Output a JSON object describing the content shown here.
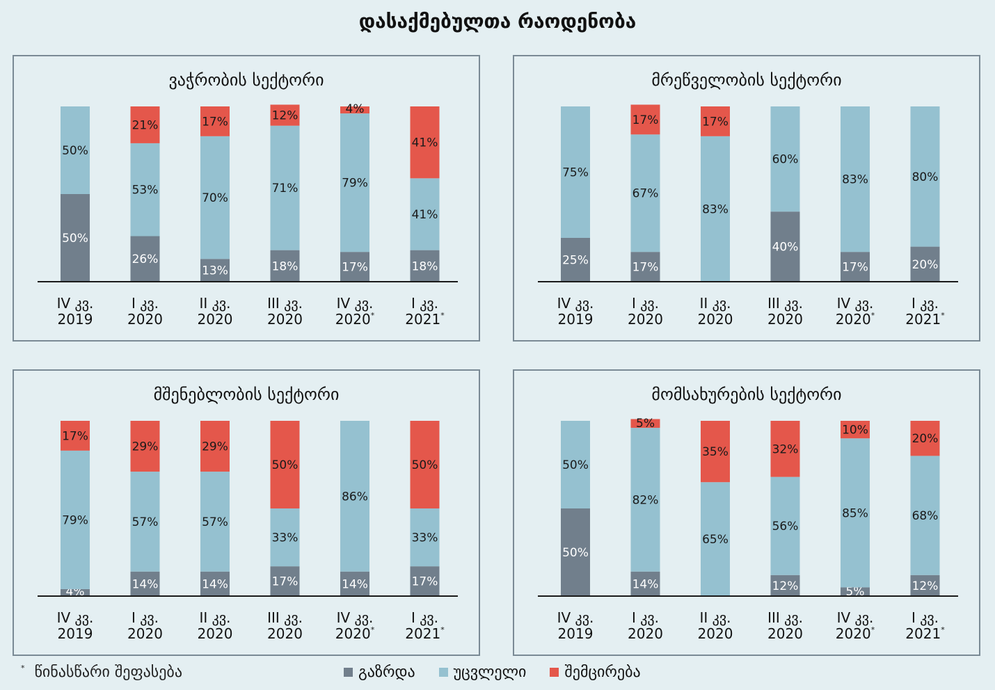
{
  "title": "დასაქმებულთა რაოდენობა",
  "colors": {
    "increase": "#717f8c",
    "unchanged": "#95c1d0",
    "decrease": "#e4574b",
    "background": "#e4eff2"
  },
  "legend": {
    "increase": "გაზრდა",
    "unchanged": "უცვლელი",
    "decrease": "შემცირება"
  },
  "footnote": {
    "mark": "*",
    "text": "წინასწარი შეფასება"
  },
  "chart_data": [
    {
      "type": "bar",
      "stacked": true,
      "title": "ვაჭრობის სექტორი",
      "categories": [
        [
          "IV კვ.",
          "2019",
          ""
        ],
        [
          "I კვ.",
          "2020",
          ""
        ],
        [
          "II კვ.",
          "2020",
          ""
        ],
        [
          "III კვ.",
          "2020",
          ""
        ],
        [
          "IV კვ.",
          "2020",
          "*"
        ],
        [
          "I კვ.",
          "2021",
          "*"
        ]
      ],
      "series": [
        {
          "name": "გაზრდა",
          "values": [
            50,
            26,
            13,
            18,
            17,
            18
          ]
        },
        {
          "name": "უცვლელი",
          "values": [
            50,
            53,
            70,
            71,
            79,
            41
          ]
        },
        {
          "name": "შემცირება",
          "values": [
            0,
            21,
            17,
            12,
            4,
            41
          ]
        }
      ],
      "ylim": [
        0,
        100
      ]
    },
    {
      "type": "bar",
      "stacked": true,
      "title": "მრეწველობის სექტორი",
      "categories": [
        [
          "IV კვ.",
          "2019",
          ""
        ],
        [
          "I კვ.",
          "2020",
          ""
        ],
        [
          "II კვ.",
          "2020",
          ""
        ],
        [
          "III კვ.",
          "2020",
          ""
        ],
        [
          "IV კვ.",
          "2020",
          "*"
        ],
        [
          "I კვ.",
          "2021",
          "*"
        ]
      ],
      "series": [
        {
          "name": "გაზრდა",
          "values": [
            25,
            17,
            0,
            40,
            17,
            20
          ]
        },
        {
          "name": "უცვლელი",
          "values": [
            75,
            67,
            83,
            60,
            83,
            80
          ]
        },
        {
          "name": "შემცირება",
          "values": [
            0,
            17,
            17,
            0,
            0,
            0
          ]
        }
      ],
      "ylim": [
        0,
        100
      ]
    },
    {
      "type": "bar",
      "stacked": true,
      "title": "მშენებლობის სექტორი",
      "categories": [
        [
          "IV კვ.",
          "2019",
          ""
        ],
        [
          "I კვ.",
          "2020",
          ""
        ],
        [
          "II კვ.",
          "2020",
          ""
        ],
        [
          "III კვ.",
          "2020",
          ""
        ],
        [
          "IV კვ.",
          "2020",
          "*"
        ],
        [
          "I კვ.",
          "2021",
          "*"
        ]
      ],
      "series": [
        {
          "name": "გაზრდა",
          "values": [
            4,
            14,
            14,
            17,
            14,
            17
          ]
        },
        {
          "name": "უცვლელი",
          "values": [
            79,
            57,
            57,
            33,
            86,
            33
          ]
        },
        {
          "name": "შემცირება",
          "values": [
            17,
            29,
            29,
            50,
            0,
            50
          ]
        }
      ],
      "ylim": [
        0,
        100
      ]
    },
    {
      "type": "bar",
      "stacked": true,
      "title": "მომსახურების სექტორი",
      "categories": [
        [
          "IV კვ.",
          "2019",
          ""
        ],
        [
          "I კვ.",
          "2020",
          ""
        ],
        [
          "II კვ.",
          "2020",
          ""
        ],
        [
          "III კვ.",
          "2020",
          ""
        ],
        [
          "IV კვ.",
          "2020",
          "*"
        ],
        [
          "I კვ.",
          "2021",
          "*"
        ]
      ],
      "series": [
        {
          "name": "გაზრდა",
          "values": [
            50,
            14,
            0,
            12,
            5,
            12
          ]
        },
        {
          "name": "უცვლელი",
          "values": [
            50,
            82,
            65,
            56,
            85,
            68
          ]
        },
        {
          "name": "შემცირება",
          "values": [
            0,
            5,
            35,
            32,
            10,
            20
          ]
        }
      ],
      "ylim": [
        0,
        100
      ]
    }
  ]
}
